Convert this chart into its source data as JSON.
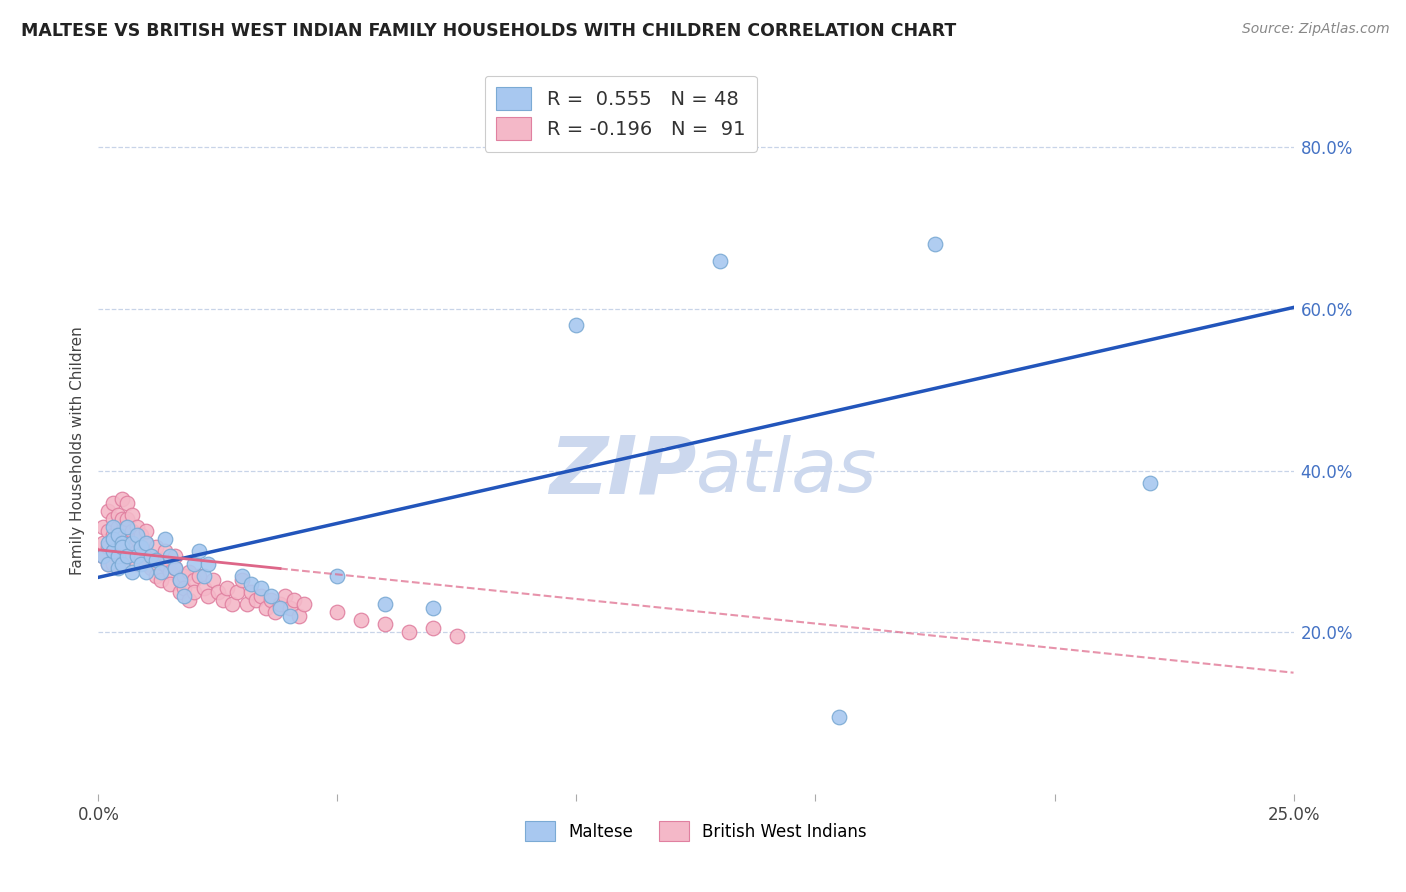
{
  "title": "MALTESE VS BRITISH WEST INDIAN FAMILY HOUSEHOLDS WITH CHILDREN CORRELATION CHART",
  "source_text": "Source: ZipAtlas.com",
  "ylabel": "Family Households with Children",
  "xlim": [
    0.0,
    0.25
  ],
  "ylim": [
    0.0,
    0.85
  ],
  "xtick_vals": [
    0.0,
    0.05,
    0.1,
    0.15,
    0.2,
    0.25
  ],
  "xtick_labels": [
    "0.0%",
    "",
    "",
    "",
    "",
    "25.0%"
  ],
  "ytick_right_vals": [
    0.2,
    0.4,
    0.6,
    0.8
  ],
  "ytick_right_labels": [
    "20.0%",
    "40.0%",
    "60.0%",
    "80.0%"
  ],
  "maltese_R": 0.555,
  "maltese_N": 48,
  "bwi_R": -0.196,
  "bwi_N": 91,
  "maltese_color": "#a8c8f0",
  "maltese_edge": "#7baad4",
  "bwi_color": "#f4b8c8",
  "bwi_edge": "#e080a0",
  "trend_blue": "#2255bb",
  "trend_pink": "#dd6688",
  "background_color": "#ffffff",
  "grid_color": "#c8d4e8",
  "watermark_color": "#ccd8ee",
  "maltese_x": [
    0.001,
    0.002,
    0.002,
    0.003,
    0.003,
    0.003,
    0.004,
    0.004,
    0.004,
    0.005,
    0.005,
    0.005,
    0.006,
    0.006,
    0.007,
    0.007,
    0.008,
    0.008,
    0.009,
    0.009,
    0.01,
    0.01,
    0.011,
    0.012,
    0.013,
    0.014,
    0.015,
    0.016,
    0.017,
    0.018,
    0.02,
    0.021,
    0.022,
    0.023,
    0.03,
    0.032,
    0.034,
    0.036,
    0.038,
    0.04,
    0.05,
    0.06,
    0.07,
    0.1,
    0.13,
    0.155,
    0.175,
    0.22
  ],
  "maltese_y": [
    0.295,
    0.31,
    0.285,
    0.33,
    0.3,
    0.315,
    0.28,
    0.32,
    0.295,
    0.31,
    0.285,
    0.305,
    0.295,
    0.33,
    0.31,
    0.275,
    0.32,
    0.295,
    0.305,
    0.285,
    0.31,
    0.275,
    0.295,
    0.29,
    0.275,
    0.315,
    0.295,
    0.28,
    0.265,
    0.245,
    0.285,
    0.3,
    0.27,
    0.285,
    0.27,
    0.26,
    0.255,
    0.245,
    0.23,
    0.22,
    0.27,
    0.235,
    0.23,
    0.58,
    0.66,
    0.095,
    0.68,
    0.385
  ],
  "bwi_x": [
    0.001,
    0.001,
    0.001,
    0.002,
    0.002,
    0.002,
    0.002,
    0.003,
    0.003,
    0.003,
    0.003,
    0.003,
    0.004,
    0.004,
    0.004,
    0.004,
    0.004,
    0.005,
    0.005,
    0.005,
    0.005,
    0.005,
    0.005,
    0.006,
    0.006,
    0.006,
    0.006,
    0.006,
    0.007,
    0.007,
    0.007,
    0.007,
    0.008,
    0.008,
    0.008,
    0.008,
    0.009,
    0.009,
    0.009,
    0.01,
    0.01,
    0.01,
    0.011,
    0.011,
    0.012,
    0.012,
    0.013,
    0.013,
    0.014,
    0.014,
    0.015,
    0.015,
    0.016,
    0.016,
    0.017,
    0.017,
    0.018,
    0.018,
    0.019,
    0.019,
    0.02,
    0.02,
    0.021,
    0.022,
    0.023,
    0.024,
    0.025,
    0.026,
    0.027,
    0.028,
    0.029,
    0.03,
    0.031,
    0.032,
    0.033,
    0.034,
    0.035,
    0.036,
    0.037,
    0.038,
    0.039,
    0.04,
    0.041,
    0.042,
    0.043,
    0.05,
    0.055,
    0.06,
    0.065,
    0.07,
    0.075
  ],
  "bwi_y": [
    0.31,
    0.295,
    0.33,
    0.305,
    0.285,
    0.325,
    0.35,
    0.3,
    0.32,
    0.285,
    0.34,
    0.36,
    0.31,
    0.295,
    0.33,
    0.315,
    0.345,
    0.3,
    0.285,
    0.325,
    0.34,
    0.31,
    0.365,
    0.295,
    0.33,
    0.315,
    0.34,
    0.36,
    0.305,
    0.325,
    0.31,
    0.345,
    0.3,
    0.315,
    0.285,
    0.33,
    0.295,
    0.32,
    0.305,
    0.31,
    0.285,
    0.325,
    0.295,
    0.28,
    0.305,
    0.27,
    0.29,
    0.265,
    0.285,
    0.3,
    0.275,
    0.26,
    0.28,
    0.295,
    0.265,
    0.25,
    0.27,
    0.255,
    0.275,
    0.24,
    0.265,
    0.25,
    0.27,
    0.255,
    0.245,
    0.265,
    0.25,
    0.24,
    0.255,
    0.235,
    0.25,
    0.265,
    0.235,
    0.25,
    0.24,
    0.245,
    0.23,
    0.24,
    0.225,
    0.235,
    0.245,
    0.23,
    0.24,
    0.22,
    0.235,
    0.225,
    0.215,
    0.21,
    0.2,
    0.205,
    0.195
  ],
  "trend_blue_x0": 0.0,
  "trend_blue_y0": 0.268,
  "trend_blue_x1": 0.25,
  "trend_blue_y1": 0.602,
  "trend_pink_x0": 0.0,
  "trend_pink_y0": 0.302,
  "trend_pink_x1": 0.25,
  "trend_pink_y1": 0.15
}
